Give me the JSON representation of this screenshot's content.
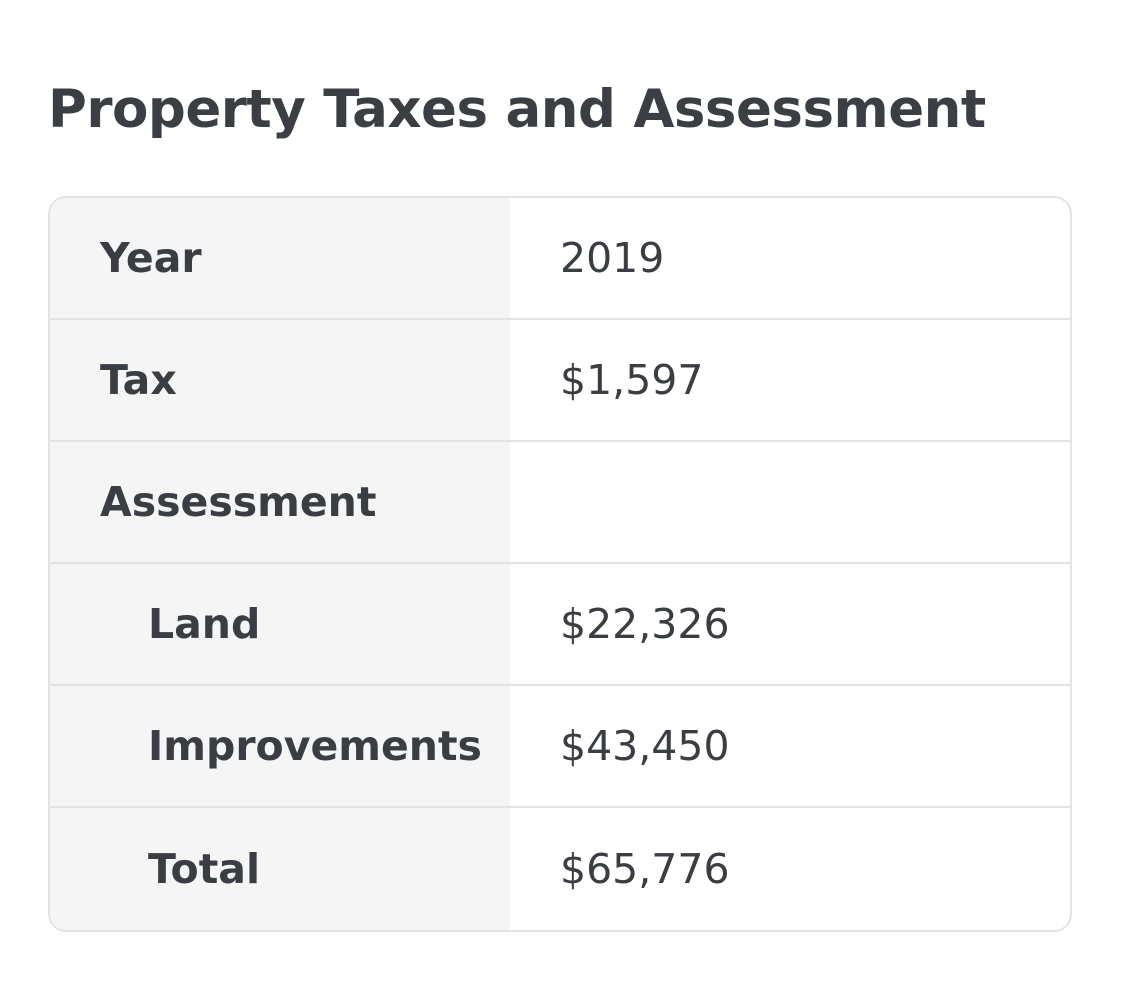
{
  "title": "Property Taxes and Assessment",
  "rows": [
    {
      "label": "Year",
      "value": "2019"
    },
    {
      "label": "Tax",
      "value": "$1,597"
    },
    {
      "label": "Assessment",
      "value": ""
    },
    {
      "label": "Land",
      "value": "$22,326"
    },
    {
      "label": "Improvements",
      "value": "$43,450"
    },
    {
      "label": "Total",
      "value": "$65,776"
    }
  ]
}
